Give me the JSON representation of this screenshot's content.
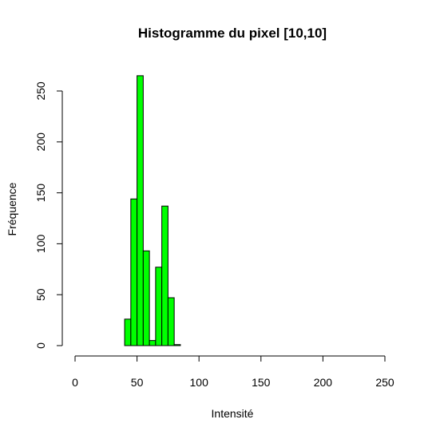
{
  "chart_data": {
    "type": "bar",
    "title": "Histogramme du pixel [10,10]",
    "xlabel": "Intensité",
    "ylabel": "Fréquence",
    "xlim": [
      0,
      250
    ],
    "ylim": [
      0,
      265
    ],
    "xticks": [
      0,
      50,
      100,
      150,
      200,
      250
    ],
    "yticks": [
      0,
      50,
      100,
      150,
      200,
      250
    ],
    "bin_width": 5,
    "bins": [
      {
        "start": 40,
        "end": 45,
        "value": 26
      },
      {
        "start": 45,
        "end": 50,
        "value": 144
      },
      {
        "start": 50,
        "end": 55,
        "value": 265
      },
      {
        "start": 55,
        "end": 60,
        "value": 93
      },
      {
        "start": 60,
        "end": 65,
        "value": 5
      },
      {
        "start": 65,
        "end": 70,
        "value": 77
      },
      {
        "start": 70,
        "end": 75,
        "value": 137
      },
      {
        "start": 75,
        "end": 80,
        "value": 47
      },
      {
        "start": 80,
        "end": 85,
        "value": 1
      }
    ],
    "bar_color": "#00ff00",
    "bar_border": "#000000",
    "grid": false,
    "legend": "none"
  }
}
